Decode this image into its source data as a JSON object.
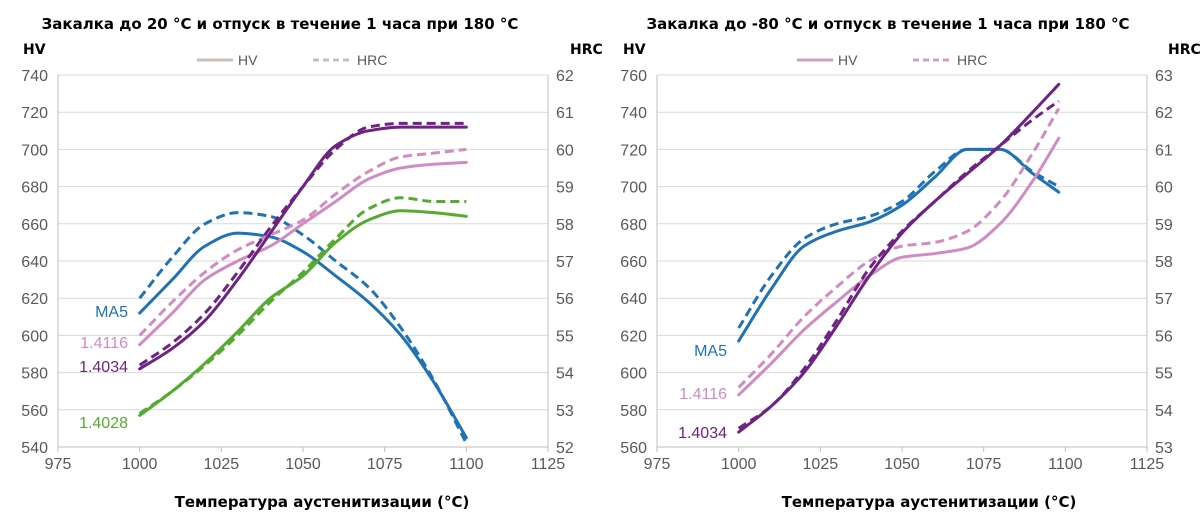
{
  "chart_data": [
    {
      "type": "line",
      "title": "Закалка до 20 °C и отпуск в течение 1 часа при 180 °C",
      "xlabel": "Температура аустенитизации (°C)",
      "ylabel_left": "HV",
      "ylabel_right": "HRC",
      "xlim": [
        975,
        1125
      ],
      "xticks": [
        975,
        1000,
        1025,
        1050,
        1075,
        1100,
        1125
      ],
      "ylim_left": [
        540,
        740
      ],
      "yticks_left": [
        540,
        560,
        580,
        600,
        620,
        640,
        660,
        680,
        700,
        720,
        740
      ],
      "ylim_right": [
        52,
        62
      ],
      "yticks_right": [
        52,
        53,
        54,
        55,
        56,
        57,
        58,
        59,
        60,
        61,
        62
      ],
      "grid": "horizontal",
      "legend": {
        "position": "top",
        "hv": "HV",
        "hrc": "HRC",
        "color": "#c9bfb8"
      },
      "series": [
        {
          "name": "MA5",
          "color": "#1f72b3",
          "hv": [
            [
              1000,
              612
            ],
            [
              1010,
              630
            ],
            [
              1020,
              648
            ],
            [
              1030,
              655
            ],
            [
              1040,
              653
            ],
            [
              1050,
              645
            ],
            [
              1060,
              632
            ],
            [
              1070,
              618
            ],
            [
              1080,
              600
            ],
            [
              1090,
              575
            ],
            [
              1100,
              545
            ]
          ],
          "hrc": [
            [
              1000,
              56.0
            ],
            [
              1010,
              57.1
            ],
            [
              1020,
              58.0
            ],
            [
              1030,
              58.3
            ],
            [
              1040,
              58.2
            ],
            [
              1050,
              57.7
            ],
            [
              1060,
              57.0
            ],
            [
              1070,
              56.3
            ],
            [
              1080,
              55.2
            ],
            [
              1090,
              53.8
            ],
            [
              1100,
              52.1
            ]
          ]
        },
        {
          "name": "1.4116",
          "color": "#d08bc2",
          "hv": [
            [
              1000,
              595
            ],
            [
              1010,
              612
            ],
            [
              1020,
              630
            ],
            [
              1030,
              640
            ],
            [
              1040,
              648
            ],
            [
              1050,
              660
            ],
            [
              1060,
              672
            ],
            [
              1070,
              684
            ],
            [
              1080,
              690
            ],
            [
              1090,
              692
            ],
            [
              1100,
              693
            ]
          ],
          "hrc": [
            [
              1000,
              55.0
            ],
            [
              1010,
              55.9
            ],
            [
              1020,
              56.7
            ],
            [
              1030,
              57.3
            ],
            [
              1040,
              57.7
            ],
            [
              1050,
              58.1
            ],
            [
              1060,
              58.8
            ],
            [
              1070,
              59.4
            ],
            [
              1080,
              59.8
            ],
            [
              1090,
              59.9
            ],
            [
              1100,
              60.0
            ]
          ]
        },
        {
          "name": "1.4034",
          "color": "#6e2383",
          "hv": [
            [
              1000,
              582
            ],
            [
              1010,
              593
            ],
            [
              1020,
              608
            ],
            [
              1030,
              630
            ],
            [
              1040,
              655
            ],
            [
              1050,
              680
            ],
            [
              1060,
              702
            ],
            [
              1070,
              710
            ],
            [
              1080,
              712
            ],
            [
              1090,
              712
            ],
            [
              1100,
              712
            ]
          ],
          "hrc": [
            [
              1000,
              54.2
            ],
            [
              1010,
              54.8
            ],
            [
              1020,
              55.6
            ],
            [
              1030,
              56.7
            ],
            [
              1040,
              57.9
            ],
            [
              1050,
              59.0
            ],
            [
              1060,
              60.0
            ],
            [
              1070,
              60.6
            ],
            [
              1080,
              60.7
            ],
            [
              1090,
              60.7
            ],
            [
              1100,
              60.7
            ]
          ]
        },
        {
          "name": "1.4028",
          "color": "#55aa30",
          "hv": [
            [
              1000,
              557
            ],
            [
              1010,
              570
            ],
            [
              1020,
              585
            ],
            [
              1030,
              602
            ],
            [
              1040,
              620
            ],
            [
              1050,
              632
            ],
            [
              1060,
              650
            ],
            [
              1070,
              662
            ],
            [
              1080,
              667
            ],
            [
              1090,
              666
            ],
            [
              1100,
              664
            ]
          ],
          "hrc": [
            [
              1000,
              52.9
            ],
            [
              1010,
              53.5
            ],
            [
              1020,
              54.2
            ],
            [
              1030,
              55.0
            ],
            [
              1040,
              55.9
            ],
            [
              1050,
              56.7
            ],
            [
              1060,
              57.6
            ],
            [
              1070,
              58.4
            ],
            [
              1080,
              58.7
            ],
            [
              1090,
              58.6
            ],
            [
              1100,
              58.6
            ]
          ]
        }
      ]
    },
    {
      "type": "line",
      "title": "Закалка до -80 °C и отпуск в течение 1 часа при 180 °C",
      "xlabel": "Температура аустенитизации (°C)",
      "ylabel_left": "HV",
      "ylabel_right": "HRC",
      "xlim": [
        975,
        1125
      ],
      "xticks": [
        975,
        1000,
        1025,
        1050,
        1075,
        1100,
        1125
      ],
      "ylim_left": [
        560,
        760
      ],
      "yticks_left": [
        560,
        580,
        600,
        620,
        640,
        660,
        680,
        700,
        720,
        740,
        760
      ],
      "ylim_right": [
        53,
        63
      ],
      "yticks_right": [
        53,
        54,
        55,
        56,
        57,
        58,
        59,
        60,
        61,
        62,
        63
      ],
      "grid": "horizontal",
      "legend": {
        "position": "top",
        "hv": "HV",
        "hrc": "HRC",
        "color": "#cda0c6"
      },
      "series": [
        {
          "name": "MA5",
          "color": "#1f72b3",
          "hv": [
            [
              1000,
              617
            ],
            [
              1010,
              645
            ],
            [
              1020,
              668
            ],
            [
              1030,
              676
            ],
            [
              1040,
              681
            ],
            [
              1050,
              690
            ],
            [
              1060,
              705
            ],
            [
              1070,
              720
            ],
            [
              1080,
              720
            ],
            [
              1090,
              707
            ],
            [
              1098,
              697
            ]
          ],
          "hrc": [
            [
              1000,
              56.2
            ],
            [
              1010,
              57.6
            ],
            [
              1020,
              58.6
            ],
            [
              1030,
              59.0
            ],
            [
              1040,
              59.2
            ],
            [
              1050,
              59.6
            ],
            [
              1060,
              60.4
            ],
            [
              1070,
              61.0
            ],
            [
              1080,
              61.0
            ],
            [
              1090,
              60.4
            ],
            [
              1098,
              60.0
            ]
          ]
        },
        {
          "name": "1.4116",
          "color": "#d08bc2",
          "hv": [
            [
              1000,
              588
            ],
            [
              1010,
              605
            ],
            [
              1020,
              623
            ],
            [
              1030,
              638
            ],
            [
              1040,
              652
            ],
            [
              1050,
              662
            ],
            [
              1060,
              664
            ],
            [
              1070,
              667
            ],
            [
              1080,
              680
            ],
            [
              1090,
              703
            ],
            [
              1098,
              726
            ]
          ],
          "hrc": [
            [
              1000,
              54.6
            ],
            [
              1010,
              55.5
            ],
            [
              1020,
              56.5
            ],
            [
              1030,
              57.3
            ],
            [
              1040,
              58.0
            ],
            [
              1050,
              58.4
            ],
            [
              1060,
              58.5
            ],
            [
              1070,
              58.8
            ],
            [
              1080,
              59.6
            ],
            [
              1090,
              60.9
            ],
            [
              1098,
              62.1
            ]
          ]
        },
        {
          "name": "1.4034",
          "color": "#6e2383",
          "hv": [
            [
              1000,
              568
            ],
            [
              1010,
              582
            ],
            [
              1020,
              600
            ],
            [
              1030,
              625
            ],
            [
              1040,
              652
            ],
            [
              1050,
              675
            ],
            [
              1060,
              692
            ],
            [
              1070,
              707
            ],
            [
              1080,
              722
            ],
            [
              1090,
              740
            ],
            [
              1098,
              755
            ]
          ],
          "hrc": [
            [
              1000,
              53.5
            ],
            [
              1010,
              54.1
            ],
            [
              1020,
              55.1
            ],
            [
              1030,
              56.4
            ],
            [
              1040,
              57.8
            ],
            [
              1050,
              58.8
            ],
            [
              1060,
              59.6
            ],
            [
              1070,
              60.4
            ],
            [
              1080,
              61.1
            ],
            [
              1090,
              61.8
            ],
            [
              1098,
              62.3
            ]
          ]
        }
      ]
    }
  ]
}
